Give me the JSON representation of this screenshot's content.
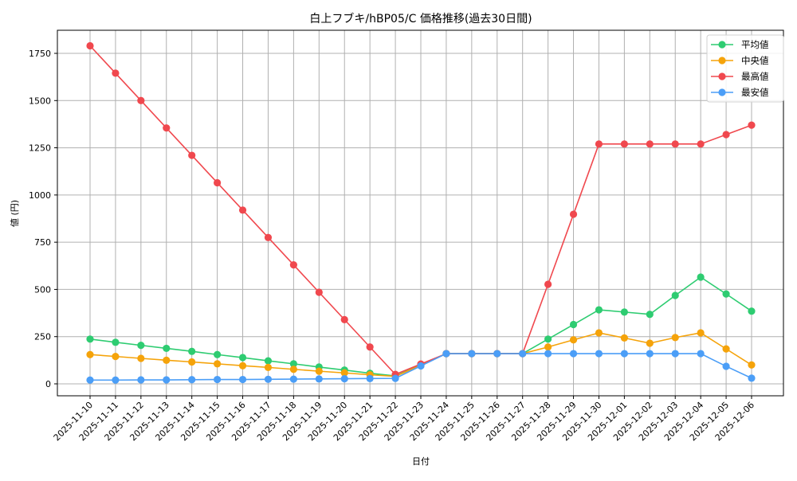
{
  "chart_data": {
    "type": "line",
    "title": "白上フブキ/hBP05/C 価格推移(過去30日間)",
    "xlabel": "日付",
    "ylabel": "値 (円)",
    "ylim": [
      -65,
      1875
    ],
    "yticks": [
      0,
      250,
      500,
      750,
      1000,
      1250,
      1500,
      1750
    ],
    "grid": true,
    "legend_position": "upper right",
    "categories": [
      "2025-11-10",
      "2025-11-11",
      "2025-11-12",
      "2025-11-13",
      "2025-11-14",
      "2025-11-15",
      "2025-11-16",
      "2025-11-17",
      "2025-11-18",
      "2025-11-19",
      "2025-11-20",
      "2025-11-21",
      "2025-11-22",
      "2025-11-23",
      "2025-11-24",
      "2025-11-25",
      "2025-11-26",
      "2025-11-27",
      "2025-11-28",
      "2025-11-29",
      "2025-11-30",
      "2025-12-01",
      "2025-12-02",
      "2025-12-03",
      "2025-12-04",
      "2025-12-05",
      "2025-12-06"
    ],
    "series": [
      {
        "name": "平均値",
        "color": "#2ecc71",
        "values": [
          237,
          220,
          204,
          188,
          172,
          155,
          139,
          122,
          106,
          89,
          73,
          56,
          42,
          100,
          160,
          160,
          160,
          160,
          237,
          314,
          392,
          380,
          368,
          468,
          565,
          476,
          385
        ]
      },
      {
        "name": "中央値",
        "color": "#f5a30a",
        "values": [
          155,
          145,
          135,
          125,
          116,
          106,
          96,
          87,
          77,
          67,
          58,
          48,
          40,
          98,
          160,
          160,
          160,
          160,
          195,
          233,
          270,
          243,
          215,
          245,
          270,
          185,
          100
        ]
      },
      {
        "name": "最高値",
        "color": "#f0484e",
        "values": [
          1790,
          1645,
          1500,
          1355,
          1210,
          1065,
          920,
          775,
          630,
          485,
          340,
          195,
          50,
          105,
          160,
          160,
          160,
          160,
          527,
          898,
          1270,
          1270,
          1270,
          1270,
          1270,
          1320,
          1370
        ]
      },
      {
        "name": "最安値",
        "color": "#4b9ef7",
        "values": [
          20,
          20,
          21,
          21,
          22,
          23,
          23,
          24,
          25,
          26,
          27,
          28,
          29,
          95,
          160,
          160,
          160,
          160,
          160,
          160,
          160,
          160,
          160,
          160,
          160,
          93,
          30
        ]
      }
    ]
  },
  "legend": {
    "items": [
      "平均値",
      "中央値",
      "最高値",
      "最安値"
    ]
  }
}
